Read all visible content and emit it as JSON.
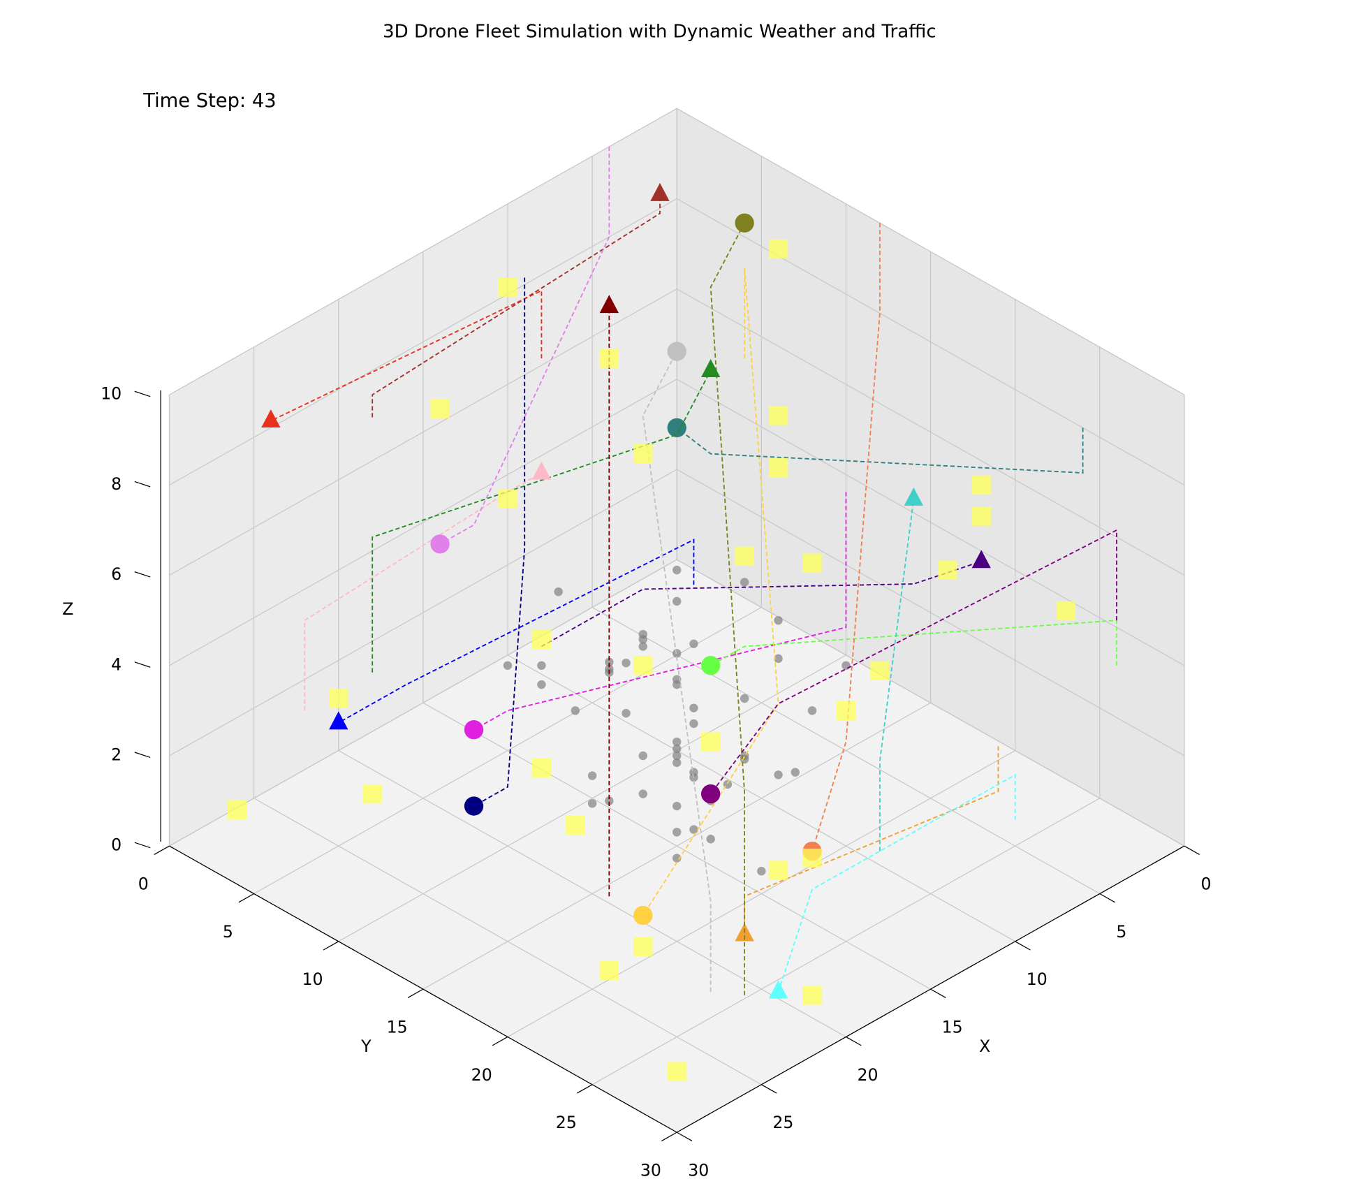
{
  "chart_data": {
    "type": "scatter3d",
    "title": "3D Drone Fleet Simulation with Dynamic Weather and Traffic",
    "annotation": "Time Step: 43",
    "xlabel": "X",
    "ylabel": "Y",
    "zlabel": "Z",
    "xlim": [
      0,
      30
    ],
    "ylim": [
      0,
      30
    ],
    "zlim": [
      0,
      10
    ],
    "xticks": [
      0,
      5,
      10,
      15,
      20,
      25,
      30
    ],
    "yticks": [
      0,
      5,
      10,
      15,
      20,
      25,
      30
    ],
    "zticks": [
      0,
      2,
      4,
      6,
      8,
      10
    ],
    "grid": true,
    "drones": [
      {
        "color": "#a0302a",
        "marker": "^",
        "x": [
          24,
          24,
          6,
          5
        ],
        "y": [
          6,
          6,
          5,
          4
        ],
        "z": [
          9.5,
          10,
          10,
          10
        ]
      },
      {
        "color": "#e8301e",
        "marker": "^",
        "x": [
          10,
          10,
          26
        ],
        "y": [
          2,
          2,
          2
        ],
        "z": [
          7,
          8.5,
          9
        ]
      },
      {
        "color": "#4b0082",
        "marker": "^",
        "x": [
          18,
          12,
          12,
          10
        ],
        "y": [
          10,
          10,
          26,
          28
        ],
        "z": [
          4,
          4,
          7.5,
          8
        ]
      },
      {
        "color": "#000080",
        "marker": "o",
        "x": [
          11,
          11,
          24,
          26
        ],
        "y": [
          2,
          2,
          14,
          14
        ],
        "z": [
          9,
          3,
          3,
          3
        ]
      },
      {
        "color": "#0000ff",
        "marker": "^",
        "x": [
          15,
          15,
          24,
          28
        ],
        "y": [
          16,
          16,
          8,
          8
        ],
        "z": [
          6,
          7,
          4,
          4
        ]
      },
      {
        "color": "#e020e0",
        "marker": "o",
        "x": [
          8,
          8,
          20,
          22
        ],
        "y": [
          18,
          18,
          10,
          10
        ],
        "z": [
          7,
          4,
          3,
          3
        ]
      },
      {
        "color": "#66ff44",
        "marker": "o",
        "x": [
          2,
          2,
          12,
          14
        ],
        "y": [
          28,
          28,
          16,
          16
        ],
        "z": [
          4,
          5,
          4,
          4
        ]
      },
      {
        "color": "#40d0c8",
        "marker": "^",
        "x": [
          14,
          14,
          4,
          4
        ],
        "y": [
          26,
          26,
          18,
          18
        ],
        "z": [
          2,
          4,
          6,
          6
        ]
      },
      {
        "color": "#f0a030",
        "marker": "^",
        "x": [
          5,
          5,
          18,
          20
        ],
        "y": [
          24,
          24,
          22,
          24
        ],
        "z": [
          2,
          1,
          1,
          1
        ]
      },
      {
        "color": "#ffd040",
        "marker": "o",
        "x": [
          4,
          4,
          14,
          22
        ],
        "y": [
          8,
          8,
          20,
          20
        ],
        "z": [
          7,
          9,
          4,
          1
        ]
      },
      {
        "color": "#808020",
        "marker": "o",
        "x": [
          22,
          22,
          6,
          4
        ],
        "y": [
          26,
          26,
          8,
          8
        ],
        "z": [
          0.5,
          5,
          9,
          10
        ]
      },
      {
        "color": "#2f7f7f",
        "marker": "o",
        "x": [
          0,
          0,
          10,
          12
        ],
        "y": [
          24,
          24,
          12,
          12
        ],
        "z": [
          8,
          7,
          7,
          8
        ]
      },
      {
        "color": "#228b22",
        "marker": "^",
        "x": [
          22,
          22,
          10,
          8
        ],
        "y": [
          4,
          4,
          10,
          10
        ],
        "z": [
          3,
          6,
          7,
          8
        ]
      },
      {
        "color": "#f08050",
        "marker": "o",
        "x": [
          0,
          0,
          14,
          16
        ],
        "y": [
          12,
          12,
          24,
          24
        ],
        "z": [
          10,
          8,
          4,
          2
        ]
      },
      {
        "color": "#ffb8c8",
        "marker": "^",
        "x": [
          26,
          26,
          18,
          16
        ],
        "y": [
          4,
          4,
          8,
          8
        ],
        "z": [
          3,
          5,
          7,
          7
        ]
      },
      {
        "color": "#e080e8",
        "marker": "o",
        "x": [
          4,
          4,
          16,
          18
        ],
        "y": [
          0,
          0,
          4,
          4
        ],
        "z": [
          10,
          8,
          5,
          5
        ]
      },
      {
        "color": "#c0c0c0",
        "marker": "o",
        "x": [
          24,
          24,
          10,
          8
        ],
        "y": [
          26,
          26,
          8,
          8
        ],
        "z": [
          1,
          3,
          7,
          8
        ]
      },
      {
        "color": "#800000",
        "marker": "^",
        "x": [
          22,
          22,
          10,
          10
        ],
        "y": [
          18,
          18,
          6,
          6
        ],
        "z": [
          1,
          5,
          7,
          9
        ]
      },
      {
        "color": "#60ffff",
        "marker": "^",
        "x": [
          6,
          6,
          18,
          22
        ],
        "y": [
          26,
          26,
          26,
          28
        ],
        "z": [
          1,
          2,
          2,
          1
        ]
      },
      {
        "color": "#800080",
        "marker": "o",
        "x": [
          2,
          2,
          14,
          16
        ],
        "y": [
          28,
          28,
          20,
          18
        ],
        "z": [
          5,
          7,
          4,
          2
        ]
      }
    ],
    "weather": {
      "color": "#ffff55",
      "marker": "s",
      "x": [
        28,
        26,
        22,
        18,
        14,
        10,
        6,
        2,
        4,
        8,
        12,
        16,
        20,
        24,
        26,
        20,
        14,
        8,
        3,
        12,
        18,
        22,
        16,
        10,
        6,
        28,
        24,
        2,
        12,
        18
      ],
      "y": [
        2,
        8,
        14,
        20,
        26,
        28,
        24,
        18,
        10,
        4,
        2,
        6,
        12,
        18,
        24,
        28,
        22,
        16,
        26,
        10,
        4,
        2,
        14,
        20,
        12,
        28,
        20,
        8,
        16,
        24
      ],
      "z": [
        0.8,
        2,
        3,
        4,
        6,
        9,
        8,
        4,
        5,
        7,
        9,
        6,
        5,
        3,
        2,
        0.5,
        1,
        5,
        5,
        7,
        8,
        2,
        4,
        3,
        7,
        0.5,
        0.2,
        9,
        6,
        2
      ]
    },
    "traffic": {
      "color": "#808080",
      "marker": "o",
      "x": [
        10,
        11,
        12,
        13,
        14,
        15,
        16,
        17,
        18,
        19,
        20,
        10,
        12,
        14,
        16,
        18,
        20,
        11,
        13,
        15,
        17,
        19,
        10,
        12,
        14,
        16,
        18,
        20,
        11,
        13,
        15,
        17,
        19,
        12,
        14,
        16,
        18,
        13,
        15,
        17,
        10,
        20,
        11,
        19,
        14,
        16,
        12,
        18,
        15,
        15
      ],
      "y": [
        10,
        11,
        12,
        13,
        14,
        15,
        16,
        17,
        18,
        19,
        20,
        20,
        18,
        16,
        14,
        12,
        10,
        15,
        17,
        11,
        13,
        19,
        14,
        10,
        20,
        18,
        16,
        12,
        12,
        14,
        18,
        10,
        16,
        13,
        11,
        17,
        19,
        19,
        13,
        15,
        17,
        15,
        19,
        11,
        15,
        12,
        16,
        14,
        10,
        20
      ],
      "z": [
        4,
        2,
        3,
        1,
        5,
        2,
        4,
        3,
        1,
        2,
        3,
        4,
        5,
        1,
        2,
        3,
        4,
        5,
        2,
        3,
        1,
        4,
        2,
        3,
        5,
        1,
        2,
        4,
        3,
        1,
        2,
        5,
        4,
        2,
        3,
        1,
        3,
        2,
        4,
        5,
        1,
        2,
        3,
        4,
        2.5,
        3.5,
        1.5,
        4.5,
        0.5,
        0.5
      ]
    }
  }
}
